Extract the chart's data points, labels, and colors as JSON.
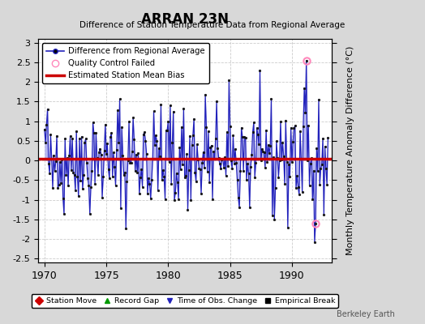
{
  "title": "ARRAN 23N",
  "subtitle": "Difference of Station Temperature Data from Regional Average",
  "ylabel": "Monthly Temperature Anomaly Difference (°C)",
  "xlim": [
    1969.5,
    1993.2
  ],
  "ylim": [
    -2.6,
    3.1
  ],
  "yticks": [
    -2.5,
    -2,
    -1.5,
    -1,
    -0.5,
    0,
    0.5,
    1,
    1.5,
    2,
    2.5,
    3
  ],
  "ytick_labels": [
    "-2.5",
    "-2",
    "-1.5",
    "-1",
    "-0.5",
    "0",
    "0.5",
    "1",
    "1.5",
    "2",
    "2.5",
    "3"
  ],
  "xticks": [
    1970,
    1975,
    1980,
    1985,
    1990
  ],
  "bias_level": 0.05,
  "line_color": "#2222bb",
  "fill_color": "#aaaaee",
  "marker_color": "#111111",
  "bias_color": "#cc0000",
  "qc_fail_color": "#ff88bb",
  "plot_bg_color": "#ffffff",
  "fig_bg_color": "#d8d8d8",
  "grid_color": "#cccccc",
  "qc_fail_points": [
    [
      1991.17,
      2.55
    ],
    [
      1991.92,
      -1.6
    ]
  ],
  "seed": 42,
  "start_year": 1970.0,
  "n_months": 276,
  "watermark": "Berkeley Earth"
}
